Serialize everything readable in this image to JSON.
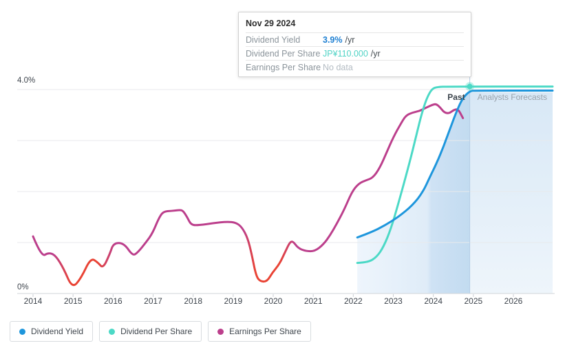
{
  "tooltip": {
    "date": "Nov 29 2024",
    "rows": [
      {
        "label": "Dividend Yield",
        "value": "3.9%",
        "unit": "/yr"
      },
      {
        "label": "Dividend Per Share",
        "value": "JP¥110.000",
        "unit": "/yr"
      },
      {
        "label": "Earnings Per Share",
        "value": "No data",
        "unit": ""
      }
    ]
  },
  "legend": {
    "items": [
      {
        "label": "Dividend Yield",
        "color": "#1e96dc"
      },
      {
        "label": "Dividend Per Share",
        "color": "#4cd9c6"
      },
      {
        "label": "Earnings Per Share",
        "color": "#bc3f8c"
      }
    ]
  },
  "annotations": {
    "past_label": "Past",
    "forecast_label": "Analysts Forecasts"
  },
  "colors": {
    "dividend_yield": "#1e96dc",
    "dividend_per_share": "#4cd9c6",
    "earnings_per_share": "#bc3f8c",
    "earnings_negative": "#e94435",
    "today_line": "#b5cee6",
    "past_fill_start": "#eef5fc",
    "past_fill_mid": "#dfecf8",
    "past_fill_band": "#cfe2f4",
    "past_fill_end": "#c2dbf0",
    "forecast_fill_top": "#d8e8f6",
    "forecast_fill_bottom": "#eef5fb",
    "grid": "#e8eaec",
    "axis": "#d2d6da",
    "axis_text": "#3d444c",
    "forecast_text": "#98a2ab"
  },
  "chart_data": {
    "type": "line",
    "title": "Dividend history and forecast",
    "x_axis": {
      "tick_years": [
        2014,
        2015,
        2016,
        2017,
        2018,
        2019,
        2020,
        2021,
        2022,
        2023,
        2024,
        2025,
        2026
      ]
    },
    "y_axis": {
      "labels": [
        {
          "text": "4.0%",
          "value": 4
        },
        {
          "text": "0%",
          "value": 0
        }
      ],
      "gridline_values": [
        4,
        3,
        2,
        1
      ],
      "range": [
        0,
        4.3
      ]
    },
    "today_year": 2024.91,
    "past_region_start_year": 2022.1,
    "marker": {
      "year": 2024.91,
      "value": 4.06,
      "color": "#4cd9c6"
    },
    "series": [
      {
        "name": "Dividend Yield",
        "color": "#1e96dc",
        "unit": "% /yr",
        "points": [
          [
            2022.1,
            1.1
          ],
          [
            2022.45,
            1.2
          ],
          [
            2022.8,
            1.34
          ],
          [
            2023.14,
            1.51
          ],
          [
            2023.48,
            1.73
          ],
          [
            2023.74,
            1.99
          ],
          [
            2023.91,
            2.28
          ],
          [
            2024.09,
            2.57
          ],
          [
            2024.26,
            2.89
          ],
          [
            2024.43,
            3.26
          ],
          [
            2024.6,
            3.61
          ],
          [
            2024.74,
            3.84
          ],
          [
            2024.91,
            3.97
          ],
          [
            2025.05,
            3.98
          ],
          [
            2026.98,
            3.98
          ]
        ]
      },
      {
        "name": "Dividend Per Share",
        "color": "#4cd9c6",
        "unit": "scaled to yield axis",
        "points": [
          [
            2022.1,
            0.6
          ],
          [
            2022.37,
            0.61
          ],
          [
            2022.59,
            0.72
          ],
          [
            2022.76,
            0.92
          ],
          [
            2022.94,
            1.27
          ],
          [
            2023.11,
            1.72
          ],
          [
            2023.28,
            2.2
          ],
          [
            2023.45,
            2.7
          ],
          [
            2023.59,
            3.15
          ],
          [
            2023.71,
            3.53
          ],
          [
            2023.83,
            3.82
          ],
          [
            2023.95,
            4.0
          ],
          [
            2024.07,
            4.05
          ],
          [
            2024.4,
            4.06
          ],
          [
            2026.98,
            4.06
          ]
        ]
      },
      {
        "name": "Earnings Per Share",
        "color": "#bc3f8c",
        "unit": "scaled to yield axis",
        "red_segments": [
          [
            2014.95,
            2015.6
          ],
          [
            2019.55,
            2020.15
          ]
        ],
        "color_stops": [
          [
            2014.0,
            "#bc3f8c"
          ],
          [
            2014.5,
            "#bc3f8c"
          ],
          [
            2014.95,
            "#e94435"
          ],
          [
            2015.6,
            "#e94435"
          ],
          [
            2016.05,
            "#bc3f8c"
          ],
          [
            2019.25,
            "#bc3f8c"
          ],
          [
            2019.55,
            "#e94435"
          ],
          [
            2020.15,
            "#e94435"
          ],
          [
            2020.55,
            "#bc3f8c"
          ],
          [
            2024.74,
            "#bc3f8c"
          ]
        ],
        "points": [
          [
            2014.0,
            1.12
          ],
          [
            2014.21,
            0.72
          ],
          [
            2014.38,
            0.8
          ],
          [
            2014.55,
            0.76
          ],
          [
            2014.76,
            0.5
          ],
          [
            2014.98,
            0.1
          ],
          [
            2015.2,
            0.3
          ],
          [
            2015.44,
            0.7
          ],
          [
            2015.62,
            0.61
          ],
          [
            2015.75,
            0.49
          ],
          [
            2015.92,
            0.78
          ],
          [
            2016.01,
            0.99
          ],
          [
            2016.27,
            0.99
          ],
          [
            2016.49,
            0.74
          ],
          [
            2016.61,
            0.8
          ],
          [
            2016.82,
            1.0
          ],
          [
            2016.99,
            1.19
          ],
          [
            2017.13,
            1.46
          ],
          [
            2017.25,
            1.61
          ],
          [
            2017.47,
            1.62
          ],
          [
            2017.68,
            1.64
          ],
          [
            2017.75,
            1.62
          ],
          [
            2017.85,
            1.5
          ],
          [
            2017.95,
            1.34
          ],
          [
            2018.16,
            1.34
          ],
          [
            2018.5,
            1.38
          ],
          [
            2018.85,
            1.41
          ],
          [
            2019.07,
            1.39
          ],
          [
            2019.22,
            1.3
          ],
          [
            2019.36,
            1.09
          ],
          [
            2019.46,
            0.78
          ],
          [
            2019.57,
            0.35
          ],
          [
            2019.67,
            0.24
          ],
          [
            2019.84,
            0.23
          ],
          [
            2019.98,
            0.41
          ],
          [
            2020.15,
            0.57
          ],
          [
            2020.29,
            0.8
          ],
          [
            2020.41,
            1.0
          ],
          [
            2020.49,
            1.03
          ],
          [
            2020.62,
            0.89
          ],
          [
            2020.82,
            0.83
          ],
          [
            2021.04,
            0.83
          ],
          [
            2021.25,
            0.96
          ],
          [
            2021.42,
            1.14
          ],
          [
            2021.59,
            1.37
          ],
          [
            2021.77,
            1.64
          ],
          [
            2021.97,
            2.0
          ],
          [
            2022.14,
            2.16
          ],
          [
            2022.32,
            2.22
          ],
          [
            2022.49,
            2.27
          ],
          [
            2022.66,
            2.46
          ],
          [
            2022.83,
            2.76
          ],
          [
            2023.01,
            3.08
          ],
          [
            2023.18,
            3.32
          ],
          [
            2023.31,
            3.49
          ],
          [
            2023.48,
            3.55
          ],
          [
            2023.66,
            3.58
          ],
          [
            2023.83,
            3.65
          ],
          [
            2023.97,
            3.7
          ],
          [
            2024.07,
            3.72
          ],
          [
            2024.17,
            3.65
          ],
          [
            2024.27,
            3.55
          ],
          [
            2024.39,
            3.53
          ],
          [
            2024.51,
            3.6
          ],
          [
            2024.62,
            3.62
          ],
          [
            2024.74,
            3.44
          ]
        ]
      }
    ],
    "legend_position": "bottom-left",
    "grid": true
  }
}
